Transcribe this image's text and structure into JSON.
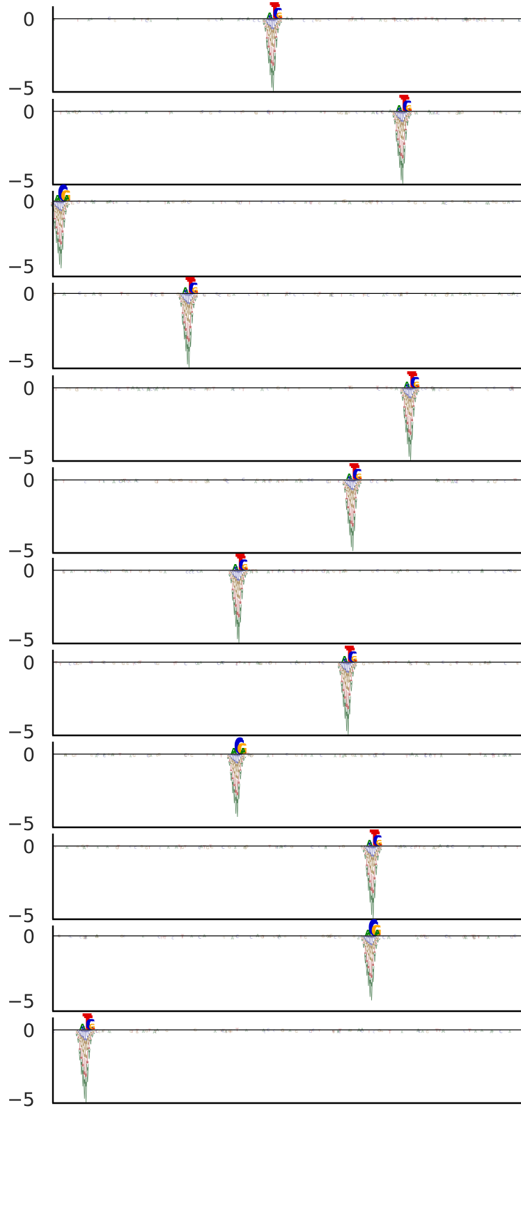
{
  "chart_data": {
    "type": "sequence-logo",
    "panel_count": 12,
    "x_range": [
      0,
      300
    ],
    "colors": {
      "A": "#008000",
      "C": "#0000cc",
      "G": "#ffa500",
      "T": "#e00000"
    },
    "negative_colors": {
      "A": "#5e8a64",
      "C": "#7575b8",
      "G": "#b59a70",
      "T": "#c47272"
    },
    "axis_color": "#000000",
    "panels": [
      {
        "name": "panel-1",
        "ylim": [
          -5.3,
          0.9
        ],
        "yticks": [
          {
            "value": 0,
            "label": "0"
          },
          {
            "value": -5,
            "label": "−5"
          }
        ],
        "motif": "ACTTCCGGTT",
        "motif_start": 137,
        "depth": 5.3
      },
      {
        "name": "panel-2",
        "ylim": [
          -5.3,
          0.9
        ],
        "yticks": [
          {
            "value": 0,
            "label": "0"
          },
          {
            "value": -5,
            "label": "−5"
          }
        ],
        "motif": "ACTTCCGGTT",
        "motif_start": 220,
        "depth": 5.3
      },
      {
        "name": "panel-3",
        "ylim": [
          -5.8,
          0.8
        ],
        "yticks": [
          {
            "value": 0,
            "label": "0"
          },
          {
            "value": -5,
            "label": "−5"
          }
        ],
        "motif": "AACCGGAAGT",
        "motif_start": 1,
        "depth": 5.2
      },
      {
        "name": "panel-4",
        "ylim": [
          -5.6,
          0.8
        ],
        "yticks": [
          {
            "value": 0,
            "label": "0"
          },
          {
            "value": -5,
            "label": "−5"
          }
        ],
        "motif": "ACTTCCGGTT",
        "motif_start": 83,
        "depth": 5.6
      },
      {
        "name": "panel-5",
        "ylim": [
          -5.3,
          0.9
        ],
        "yticks": [
          {
            "value": 0,
            "label": "0"
          },
          {
            "value": -5,
            "label": "−5"
          }
        ],
        "motif": "ACTTCCGGTT",
        "motif_start": 225,
        "depth": 5.3
      },
      {
        "name": "panel-6",
        "ylim": [
          -5.2,
          0.9
        ],
        "yticks": [
          {
            "value": 0,
            "label": "0"
          },
          {
            "value": -5,
            "label": "−5"
          }
        ],
        "motif": "ACTTCCGGTT",
        "motif_start": 188,
        "depth": 5.1
      },
      {
        "name": "panel-7",
        "ylim": [
          -5.3,
          0.9
        ],
        "yticks": [
          {
            "value": 0,
            "label": "0"
          },
          {
            "value": -5,
            "label": "−5"
          }
        ],
        "motif": "ACTTCCGGTT",
        "motif_start": 115,
        "depth": 5.3
      },
      {
        "name": "panel-8",
        "ylim": [
          -5.3,
          0.9
        ],
        "yticks": [
          {
            "value": 0,
            "label": "0"
          },
          {
            "value": -5,
            "label": "−5"
          }
        ],
        "motif": "ACTTCCGGTT",
        "motif_start": 185,
        "depth": 5.3
      },
      {
        "name": "panel-9",
        "ylim": [
          -5.3,
          0.9
        ],
        "yticks": [
          {
            "value": 0,
            "label": "0"
          },
          {
            "value": -5,
            "label": "−5"
          }
        ],
        "motif": "AACCGGAAGT",
        "motif_start": 114,
        "depth": 4.6
      },
      {
        "name": "panel-10",
        "ylim": [
          -5.3,
          0.9
        ],
        "yticks": [
          {
            "value": 0,
            "label": "0"
          },
          {
            "value": -5,
            "label": "−5"
          }
        ],
        "motif": "ACTTCCGGTT",
        "motif_start": 201,
        "depth": 5.3
      },
      {
        "name": "panel-11",
        "ylim": [
          -5.8,
          0.8
        ],
        "yticks": [
          {
            "value": 0,
            "label": "0"
          },
          {
            "value": -5,
            "label": "−5"
          }
        ],
        "motif": "AACCGGAAGT",
        "motif_start": 200,
        "depth": 5.0
      },
      {
        "name": "panel-12",
        "ylim": [
          -5.3,
          0.9
        ],
        "yticks": [
          {
            "value": 0,
            "label": "0"
          },
          {
            "value": -5,
            "label": "−5"
          }
        ],
        "motif": "ACTTCCGGTT",
        "motif_start": 17,
        "depth": 5.3
      }
    ]
  }
}
